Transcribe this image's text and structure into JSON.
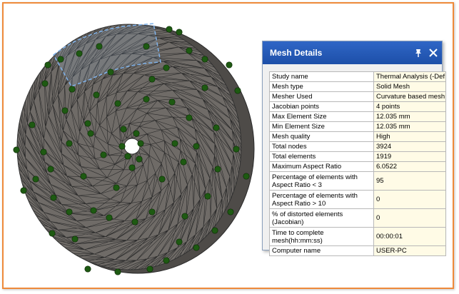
{
  "panel": {
    "title": "Mesh Details",
    "icons": {
      "pin": "pin-icon",
      "close": "close-icon"
    },
    "rows": [
      {
        "label": "Study name",
        "value": "Thermal Analysis (-Def"
      },
      {
        "label": "Mesh type",
        "value": "Solid Mesh"
      },
      {
        "label": "Mesher Used",
        "value": "Curvature based mesh"
      },
      {
        "label": "Jacobian points",
        "value": "4 points"
      },
      {
        "label": "Max Element Size",
        "value": "12.035 mm"
      },
      {
        "label": "Min Element Size",
        "value": "12.035 mm"
      },
      {
        "label": "Mesh quality",
        "value": "High"
      },
      {
        "label": "Total nodes",
        "value": "3924"
      },
      {
        "label": "Total elements",
        "value": "1919"
      },
      {
        "label": "Maximum Aspect Ratio",
        "value": "6.0522"
      },
      {
        "label": "Percentage of elements with Aspect Ratio < 3",
        "value": "95"
      },
      {
        "label": "Percentage of elements with Aspect Ratio > 10",
        "value": "0"
      },
      {
        "label": "% of distorted elements (Jacobian)",
        "value": "0"
      },
      {
        "label": "Time to complete mesh(hh:mm:ss)",
        "value": "00:00:01"
      },
      {
        "label": "Computer name",
        "value": "USER-PC"
      }
    ]
  },
  "colors": {
    "frame": "#ee8a3a",
    "titlebar": "#2a5fbf",
    "disk": "#6e6a66",
    "markers": "#1e5a12"
  }
}
